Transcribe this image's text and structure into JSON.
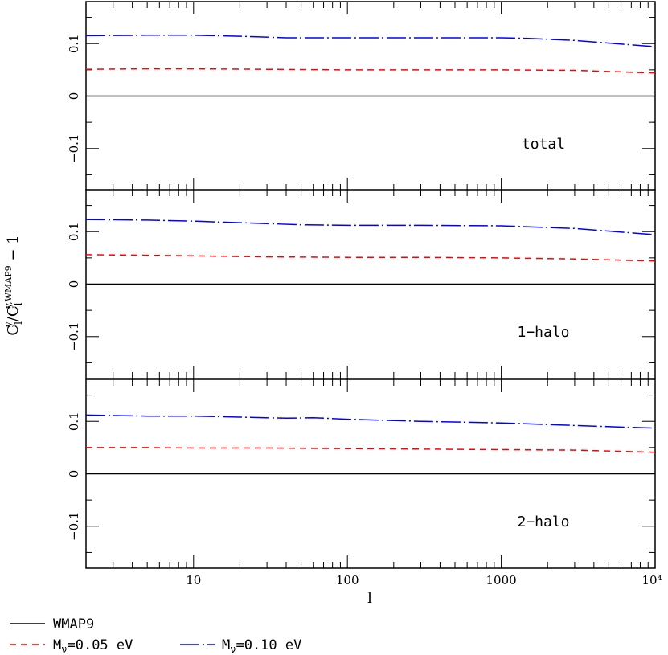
{
  "chart_data": {
    "type": "line",
    "ylabel": "C_l^y/C_l^{y,WMAP9} − 1",
    "ylabel_parts": {
      "base": "C",
      "sub": "l",
      "sup": "y",
      "sup_ref": "y,WMAP9",
      "suffix": " − 1"
    },
    "xlabel": "l",
    "xscale": "log",
    "xlim": [
      2,
      10000
    ],
    "ylim": [
      -0.18,
      0.18
    ],
    "x_tick_labels": [
      "10",
      "100",
      "1000",
      "10⁴"
    ],
    "x_tick_values": [
      10,
      100,
      1000,
      10000
    ],
    "y_tick_labels": [
      "−0.1",
      "0",
      "0.1"
    ],
    "y_tick_values": [
      -0.1,
      0,
      0.1
    ],
    "colors": {
      "WMAP9": "#000000",
      "M_nu_0.05": "#ff0000",
      "M_nu_0.10": "#0000ff"
    },
    "legend": [
      {
        "label": "WMAP9",
        "color": "#000000",
        "style": "solid"
      },
      {
        "label": "M_ν=0.05 eV",
        "prefix": "M",
        "sub": "ν",
        "suffix": "=0.05 eV",
        "color": "#ff0000",
        "style": "dashed"
      },
      {
        "label": "M_ν=0.10 eV",
        "prefix": "M",
        "sub": "ν",
        "suffix": "=0.10 eV",
        "color": "#0000ff",
        "style": "long-dash"
      }
    ],
    "panels": [
      {
        "label": "total",
        "series": [
          {
            "name": "WMAP9",
            "x": [
              2,
              10000
            ],
            "y": [
              0,
              0
            ]
          },
          {
            "name": "M_ν=0.05 eV",
            "x": [
              2,
              5,
              10,
              30,
              100,
              300,
              1000,
              3000,
              10000
            ],
            "y": [
              0.051,
              0.052,
              0.052,
              0.051,
              0.05,
              0.05,
              0.05,
              0.049,
              0.044
            ]
          },
          {
            "name": "M_ν=0.10 eV",
            "x": [
              2,
              5,
              10,
              20,
              40,
              100,
              300,
              1000,
              1500,
              3000,
              10000
            ],
            "y": [
              0.115,
              0.116,
              0.116,
              0.114,
              0.111,
              0.111,
              0.111,
              0.111,
              0.11,
              0.106,
              0.094
            ]
          }
        ]
      },
      {
        "label": "1−halo",
        "series": [
          {
            "name": "WMAP9",
            "x": [
              2,
              10000
            ],
            "y": [
              0,
              0
            ]
          },
          {
            "name": "M_ν=0.05 eV",
            "x": [
              2,
              5,
              10,
              30,
              100,
              300,
              1000,
              3000,
              10000
            ],
            "y": [
              0.056,
              0.055,
              0.054,
              0.052,
              0.051,
              0.051,
              0.05,
              0.048,
              0.044
            ]
          },
          {
            "name": "M_ν=0.10 eV",
            "x": [
              2,
              5,
              10,
              20,
              50,
              100,
              300,
              1000,
              3000,
              10000
            ],
            "y": [
              0.123,
              0.122,
              0.12,
              0.117,
              0.113,
              0.112,
              0.112,
              0.111,
              0.106,
              0.094
            ]
          }
        ]
      },
      {
        "label": "2−halo",
        "series": [
          {
            "name": "WMAP9",
            "x": [
              2,
              10000
            ],
            "y": [
              0,
              0
            ]
          },
          {
            "name": "M_ν=0.05 eV",
            "x": [
              2,
              5,
              10,
              30,
              100,
              300,
              1000,
              3000,
              10000
            ],
            "y": [
              0.05,
              0.05,
              0.049,
              0.049,
              0.048,
              0.047,
              0.046,
              0.045,
              0.041
            ]
          },
          {
            "name": "M_ν=0.10 eV",
            "x": [
              2,
              5,
              10,
              20,
              40,
              60,
              100,
              300,
              1000,
              3000,
              10000
            ],
            "y": [
              0.112,
              0.11,
              0.11,
              0.108,
              0.106,
              0.107,
              0.104,
              0.1,
              0.097,
              0.092,
              0.087
            ]
          }
        ]
      }
    ]
  }
}
